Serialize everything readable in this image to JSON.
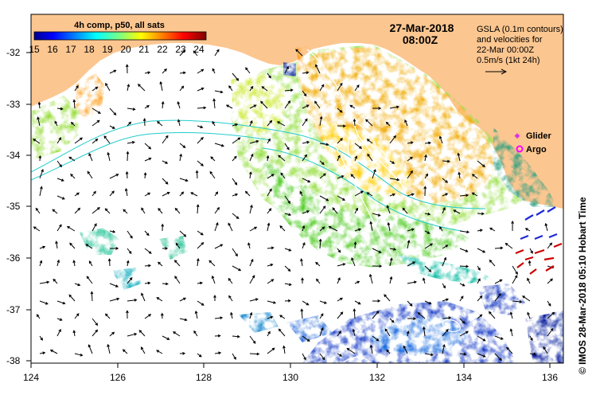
{
  "colorbar": {
    "title": "4h comp, p50, all sats",
    "ticks": [
      "15",
      "16",
      "17",
      "18",
      "19",
      "20",
      "21",
      "22",
      "23",
      "24"
    ],
    "min": 15,
    "max": 24.5
  },
  "header": {
    "date": "27-Mar-2018",
    "time": "08:00Z"
  },
  "gsla_note": {
    "line1": "GSLA (0.1m contours)",
    "line2": "and velocities for",
    "line3": "22-Mar 00:00Z",
    "line4": "0.5m/s (1kt 24h)"
  },
  "legend": {
    "glider": "Glider",
    "argo": "Argo",
    "glider_color": "#dd33dd",
    "argo_color": "#ff00ff"
  },
  "credit": "© IMOS 28-Mar-2018 05:10 Hobart Time",
  "axes": {
    "lat_ticks": [
      "-32",
      "-33",
      "-34",
      "-35",
      "-36",
      "-37",
      "-38"
    ],
    "lon_ticks": [
      "124",
      "126",
      "128",
      "130",
      "132",
      "134",
      "136"
    ]
  },
  "colors": {
    "land": "#fcc690",
    "ocean": "#ffffff",
    "contour": "#ffffff",
    "stream": "#22cccc",
    "arrow": "#000000",
    "red_arrow": "#cc0000",
    "blue_arrow": "#1e2ad8"
  }
}
